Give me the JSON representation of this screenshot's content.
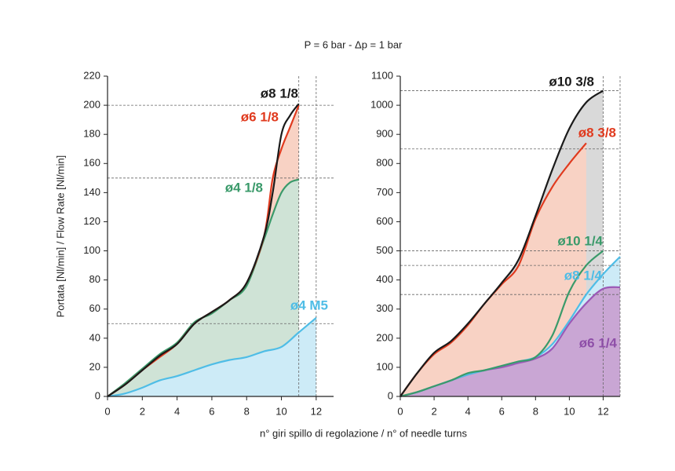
{
  "title": "P = 6 bar - Δp = 1 bar",
  "ylabel": "Portata [Nl/min] / Flow Rate [Nl/min]",
  "xlabel": "n° giri spillo di regolazione / n° of needle turns",
  "chart_data": [
    {
      "type": "line",
      "xlim": [
        0,
        13
      ],
      "xticks": [
        0,
        2,
        4,
        6,
        8,
        10,
        12
      ],
      "ylim": [
        0,
        220
      ],
      "yticks": [
        0,
        20,
        40,
        60,
        80,
        100,
        120,
        140,
        160,
        180,
        200,
        220
      ],
      "ref_hlines": [
        200,
        150,
        50
      ],
      "ref_vlines": [
        11,
        12
      ],
      "series": [
        {
          "name": "ø8 1/8",
          "color": "#1a1a1a",
          "x": [
            0,
            1,
            2,
            3,
            4,
            5,
            6,
            7,
            8,
            9,
            9.5,
            10,
            10.5,
            11
          ],
          "values": [
            0,
            8,
            18,
            28,
            36,
            50,
            58,
            66,
            78,
            110,
            140,
            180,
            193,
            201
          ]
        },
        {
          "name": "ø6 1/8",
          "color": "#e03a1e",
          "fill": "#f8d2c4",
          "x": [
            0,
            1,
            2,
            3,
            4,
            5,
            6,
            7,
            8,
            9,
            9.5,
            10,
            10.5,
            11
          ],
          "values": [
            0,
            8,
            18,
            27,
            36,
            50,
            58,
            66,
            78,
            110,
            150,
            170,
            185,
            200
          ]
        },
        {
          "name": "ø4 1/8",
          "color": "#3a9a6a",
          "fill": "#cfe3d6",
          "x": [
            0,
            1,
            2,
            3,
            4,
            5,
            6,
            7,
            8,
            9,
            9.5,
            10,
            10.5,
            11
          ],
          "values": [
            0,
            9,
            19,
            29,
            37,
            51,
            57,
            66,
            76,
            108,
            125,
            140,
            147,
            149
          ]
        },
        {
          "name": "ø4 M5",
          "color": "#4fbde6",
          "fill": "#cdebf7",
          "x": [
            0,
            1,
            2,
            3,
            4,
            5,
            6,
            7,
            8,
            9,
            10,
            11,
            12
          ],
          "values": [
            0,
            2,
            6,
            11,
            14,
            18,
            22,
            25,
            27,
            31,
            34,
            44,
            54
          ]
        }
      ]
    },
    {
      "type": "line",
      "xlim": [
        0,
        13
      ],
      "xticks": [
        0,
        2,
        4,
        6,
        8,
        10,
        12
      ],
      "ylim": [
        0,
        1100
      ],
      "yticks": [
        0,
        100,
        200,
        300,
        400,
        500,
        600,
        700,
        800,
        900,
        1000,
        1100
      ],
      "ref_hlines": [
        1050,
        850,
        500,
        450,
        350
      ],
      "ref_vlines": [
        12,
        13
      ],
      "series": [
        {
          "name": "ø10 3/8",
          "color": "#1a1a1a",
          "fill": "#d9d9d9",
          "x": [
            0,
            1,
            2,
            3,
            4,
            5,
            6,
            7,
            8,
            9,
            10,
            11,
            12
          ],
          "values": [
            0,
            80,
            150,
            190,
            250,
            320,
            390,
            470,
            620,
            780,
            920,
            1010,
            1050
          ]
        },
        {
          "name": "ø8 3/8",
          "color": "#e03a1e",
          "fill": "#f8d2c4",
          "x": [
            0,
            1,
            2,
            3,
            4,
            5,
            6,
            7,
            8,
            9,
            10,
            11
          ],
          "values": [
            0,
            80,
            145,
            185,
            245,
            320,
            385,
            450,
            610,
            720,
            800,
            870
          ]
        },
        {
          "name": "ø10 1/4",
          "color": "#3a9a6a",
          "x": [
            0,
            1,
            2,
            3,
            4,
            5,
            6,
            7,
            8,
            9,
            10,
            11,
            12
          ],
          "values": [
            0,
            15,
            35,
            55,
            80,
            90,
            105,
            120,
            135,
            210,
            360,
            450,
            500
          ]
        },
        {
          "name": "ø8 1/4",
          "color": "#4fbde6",
          "fill": "#cdebf7",
          "x": [
            0,
            1,
            2,
            3,
            4,
            5,
            6,
            7,
            8,
            9,
            10,
            11,
            12,
            13
          ],
          "values": [
            0,
            15,
            35,
            55,
            75,
            90,
            105,
            120,
            135,
            180,
            260,
            350,
            420,
            480
          ]
        },
        {
          "name": "ø6 1/4",
          "color": "#9b59b6",
          "fill": "#c9a6d4",
          "x": [
            0,
            1,
            2,
            3,
            4,
            5,
            6,
            7,
            8,
            9,
            10,
            11,
            12,
            13
          ],
          "values": [
            0,
            15,
            35,
            55,
            75,
            90,
            100,
            115,
            130,
            165,
            250,
            320,
            370,
            375
          ]
        }
      ]
    }
  ]
}
